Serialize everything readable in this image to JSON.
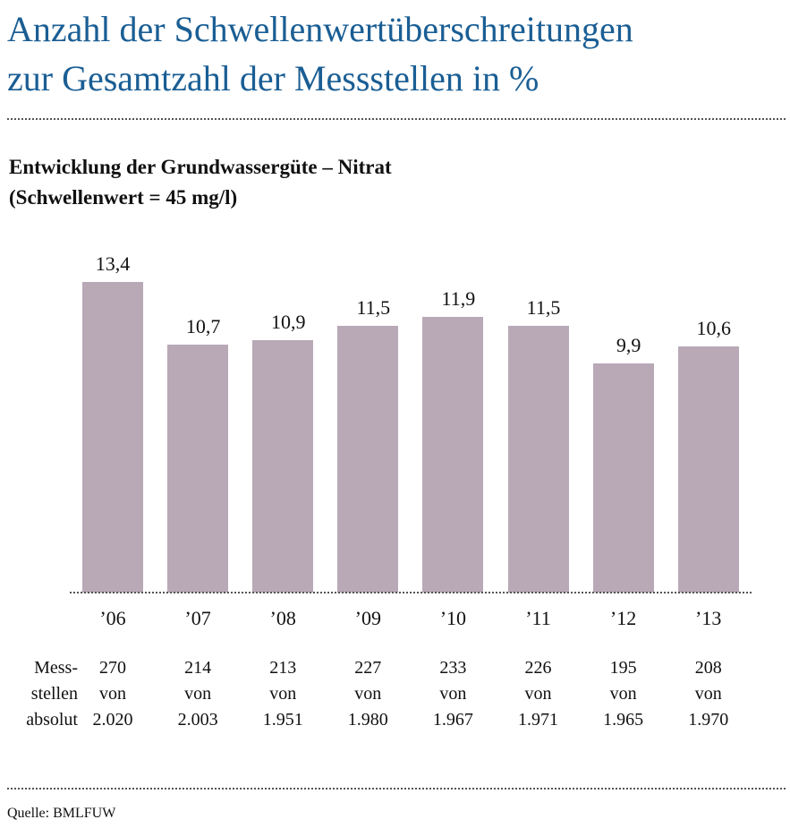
{
  "header": {
    "title_line1": "Anzahl der Schwellenwertüberschreitungen",
    "title_line2": "zur Gesamtzahl der Messstellen in %"
  },
  "chart_data": {
    "type": "bar",
    "title": "Entwicklung der Grundwassergüte – Nitrat",
    "subtitle": "(Schwellenwert = 45 mg/l)",
    "categories": [
      "’06",
      "’07",
      "’08",
      "’09",
      "’10",
      "’11",
      "’12",
      "’13"
    ],
    "values": [
      13.4,
      10.7,
      10.9,
      11.5,
      11.9,
      11.5,
      9.9,
      10.6
    ],
    "value_labels": [
      "13,4",
      "10,7",
      "10,9",
      "11,5",
      "11,9",
      "11,5",
      "9,9",
      "10,6"
    ],
    "ylim": [
      0,
      14
    ],
    "grid": false,
    "bar_color": "#b9a9b7"
  },
  "table": {
    "row_label": [
      "Mess-",
      "stellen",
      "absolut"
    ],
    "counts": [
      "270",
      "214",
      "213",
      "227",
      "233",
      "226",
      "195",
      "208"
    ],
    "von": "von",
    "totals": [
      "2.020",
      "2.003",
      "1.951",
      "1.980",
      "1.967",
      "1.971",
      "1.965",
      "1.970"
    ]
  },
  "footer": {
    "source": "Quelle: BMLFUW"
  },
  "colors": {
    "title": "#1a5e94",
    "bar": "#b9a9b7"
  }
}
